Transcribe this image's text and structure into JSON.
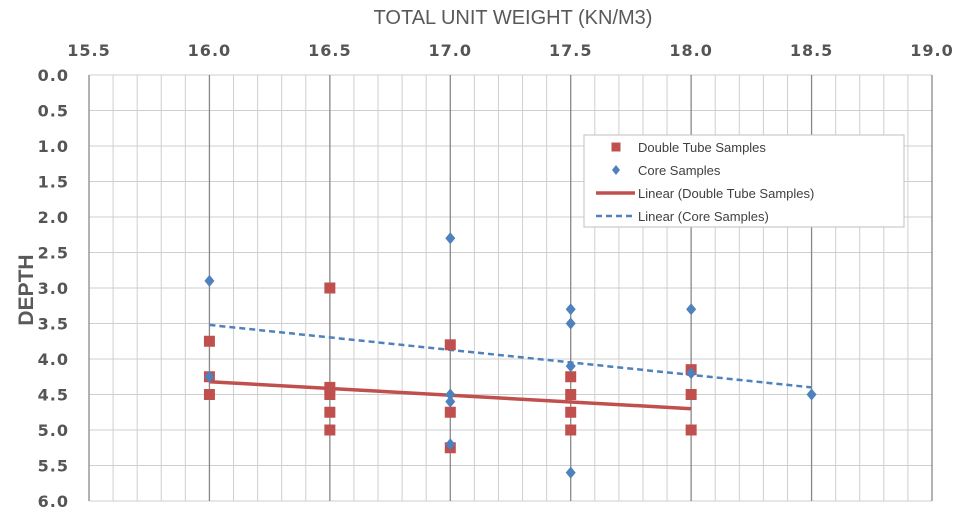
{
  "chart_data": {
    "type": "scatter",
    "title": "TOTAL UNIT WEIGHT (KN/M3)",
    "xlabel": "TOTAL UNIT WEIGHT (KN/M3)",
    "ylabel": "DEPTH",
    "xlim": [
      15.5,
      19.0
    ],
    "ylim": [
      0.0,
      6.0
    ],
    "x_ticks": [
      "15.5",
      "16.0",
      "16.5",
      "17.0",
      "17.5",
      "18.0",
      "18.5",
      "19.0"
    ],
    "y_ticks": [
      "0.0",
      "0.5",
      "1.0",
      "1.5",
      "2.0",
      "2.5",
      "3.0",
      "3.5",
      "4.0",
      "4.5",
      "5.0",
      "5.5",
      "6.0"
    ],
    "x_axis_position": "top",
    "y_axis_inverted": true,
    "grid": true,
    "legend_position": "top-right",
    "series": [
      {
        "name": "Double Tube Samples",
        "marker": "square",
        "color": "#c0504d",
        "points": [
          {
            "x": 16.0,
            "y": 3.75
          },
          {
            "x": 16.0,
            "y": 4.25
          },
          {
            "x": 16.0,
            "y": 4.5
          },
          {
            "x": 16.5,
            "y": 3.0
          },
          {
            "x": 16.5,
            "y": 4.4
          },
          {
            "x": 16.5,
            "y": 4.5
          },
          {
            "x": 16.5,
            "y": 4.75
          },
          {
            "x": 16.5,
            "y": 5.0
          },
          {
            "x": 17.0,
            "y": 3.8
          },
          {
            "x": 17.0,
            "y": 4.75
          },
          {
            "x": 17.0,
            "y": 5.25
          },
          {
            "x": 17.5,
            "y": 4.25
          },
          {
            "x": 17.5,
            "y": 4.5
          },
          {
            "x": 17.5,
            "y": 4.75
          },
          {
            "x": 17.5,
            "y": 5.0
          },
          {
            "x": 18.0,
            "y": 4.15
          },
          {
            "x": 18.0,
            "y": 4.5
          },
          {
            "x": 18.0,
            "y": 5.0
          }
        ]
      },
      {
        "name": "Core Samples",
        "marker": "diamond",
        "color": "#4f81bd",
        "points": [
          {
            "x": 16.0,
            "y": 2.9
          },
          {
            "x": 16.0,
            "y": 4.25
          },
          {
            "x": 17.0,
            "y": 2.3
          },
          {
            "x": 17.0,
            "y": 4.5
          },
          {
            "x": 17.0,
            "y": 4.6
          },
          {
            "x": 17.0,
            "y": 5.2
          },
          {
            "x": 17.5,
            "y": 3.3
          },
          {
            "x": 17.5,
            "y": 3.5
          },
          {
            "x": 17.5,
            "y": 4.1
          },
          {
            "x": 17.5,
            "y": 5.6
          },
          {
            "x": 18.0,
            "y": 3.3
          },
          {
            "x": 18.0,
            "y": 4.2
          },
          {
            "x": 18.5,
            "y": 4.5
          }
        ]
      }
    ],
    "trendlines": [
      {
        "name": "Linear (Double Tube Samples)",
        "color": "#c0504d",
        "style": "solid",
        "from": [
          16.0,
          4.32
        ],
        "to": [
          18.0,
          4.7
        ]
      },
      {
        "name": "Linear (Core Samples)",
        "color": "#4f81bd",
        "style": "dashed",
        "from": [
          16.0,
          3.52
        ],
        "to": [
          18.5,
          4.4
        ]
      }
    ],
    "legend": [
      {
        "label": "Double Tube Samples",
        "kind": "square",
        "color": "#c0504d"
      },
      {
        "label": "Core Samples",
        "kind": "diamond",
        "color": "#4f81bd"
      },
      {
        "label": "Linear (Double Tube Samples)",
        "kind": "solid-line",
        "color": "#c0504d"
      },
      {
        "label": "Linear (Core Samples)",
        "kind": "dashed-line",
        "color": "#4f81bd"
      }
    ]
  }
}
